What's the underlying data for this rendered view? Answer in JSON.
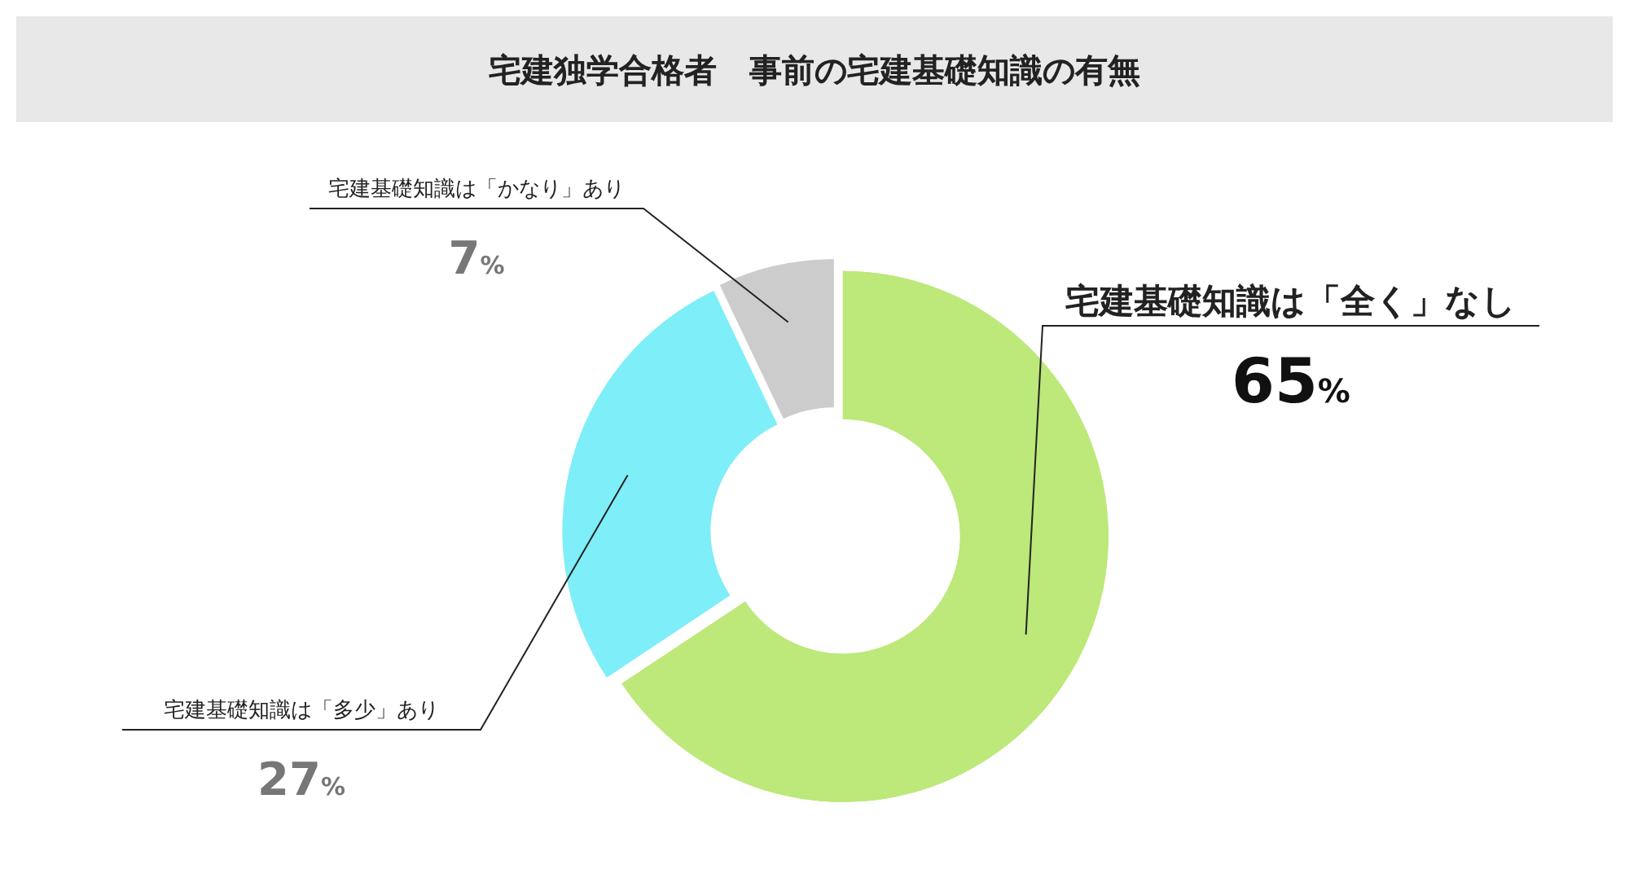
{
  "chart_data": {
    "type": "donut",
    "title": "宅建独学合格者　事前の宅建基礎知識の有無",
    "categories": [
      "宅建基礎知識は「全く」なし",
      "宅建基礎知識は「多少」あり",
      "宅建基礎知識は「かなり」あり"
    ],
    "values": [
      65,
      27,
      7
    ],
    "colors": [
      "#bde87a",
      "#7eeef8",
      "#cccccc"
    ],
    "value_labels": [
      "65%",
      "27%",
      "7%"
    ],
    "legend": false
  }
}
